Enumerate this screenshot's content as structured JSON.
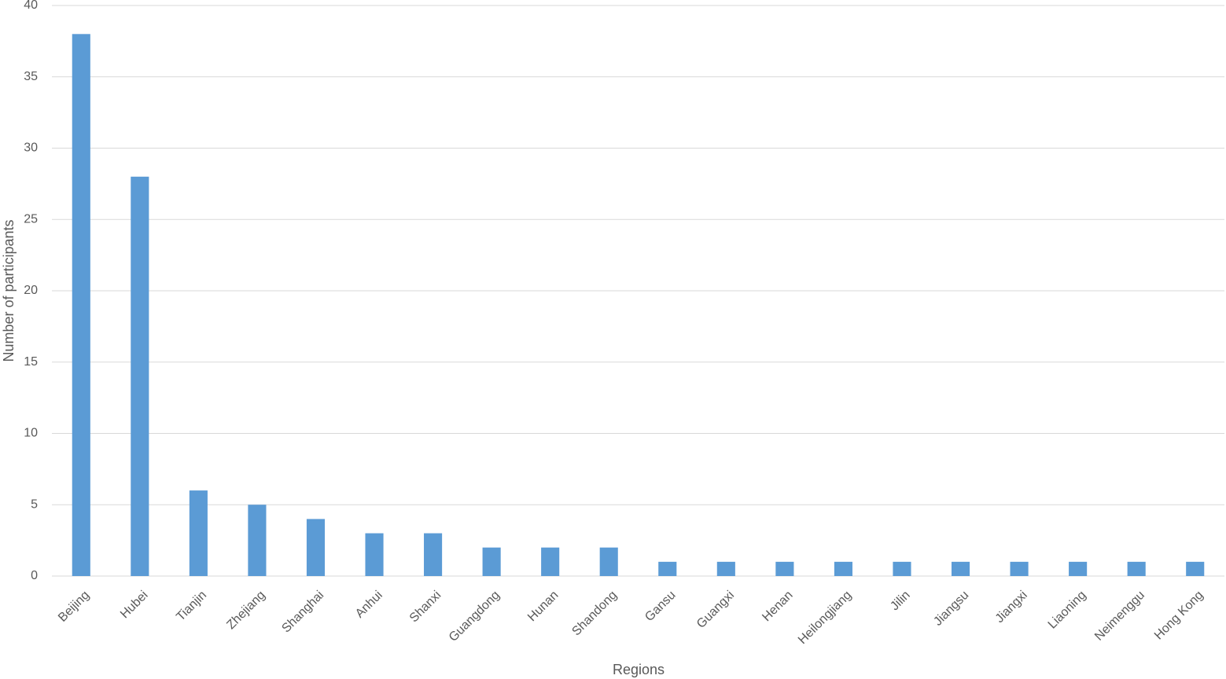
{
  "chart_data": {
    "type": "bar",
    "x_label": "Regions",
    "y_label": "Number of participants",
    "categories": [
      "Beijing",
      "Hubei",
      "Tianjin",
      "Zhejiang",
      "Shanghai",
      "Anhui",
      "Shanxi",
      "Guangdong",
      "Hunan",
      "Shandong",
      "Gansu",
      "Guangxi",
      "Henan",
      "Heilongjiang",
      "Jilin",
      "Jiangsu",
      "Jiangxi",
      "Liaoning",
      "Neimenggu",
      "Hong Kong"
    ],
    "values": [
      38,
      28,
      6,
      5,
      4,
      3,
      3,
      2,
      2,
      2,
      1,
      1,
      1,
      1,
      1,
      1,
      1,
      1,
      1,
      1
    ],
    "color": "#5b9bd5",
    "ylim": [
      0,
      40
    ],
    "yticks": [
      0,
      5,
      10,
      15,
      20,
      25,
      30,
      35,
      40
    ],
    "grid": true
  }
}
